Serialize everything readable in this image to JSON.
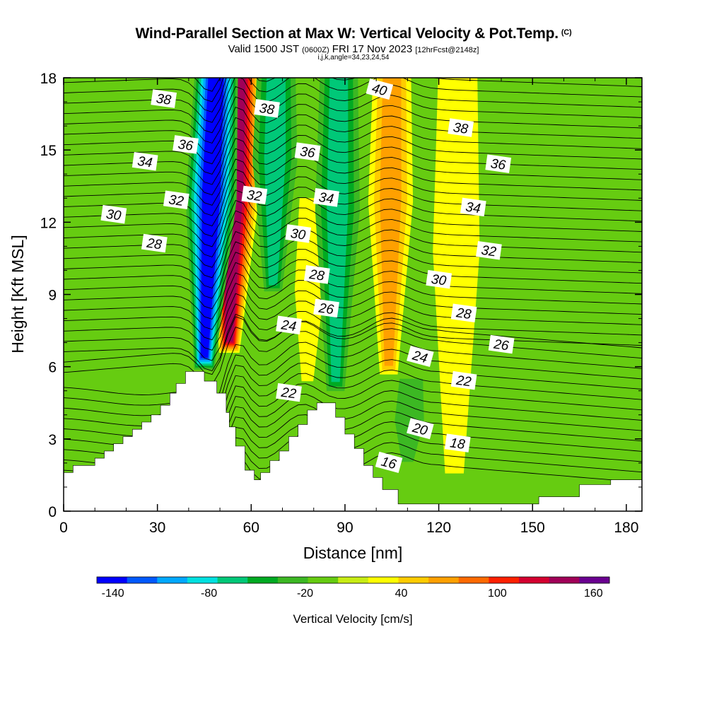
{
  "titles": {
    "main": "Wind-Parallel Section at Max W: Vertical Velocity & Pot.Temp.",
    "copyright": "(C)",
    "valid_prefix": "Valid 1500 JST",
    "valid_utc": "(0600Z)",
    "valid_date": "FRI 17 Nov 2023",
    "forecast": "[12hrFcst@2148z]",
    "indices": "i,j,k,angle=34,23,24,54"
  },
  "chart_data": {
    "type": "heatmap",
    "xlabel": "Distance [nm]",
    "ylabel": "Height [Kft MSL]",
    "xlim": [
      0,
      185
    ],
    "ylim": [
      0,
      18
    ],
    "x_ticks": [
      "0",
      "30",
      "60",
      "90",
      "120",
      "150",
      "180"
    ],
    "y_ticks": [
      "0",
      "3",
      "6",
      "9",
      "12",
      "15",
      "18"
    ],
    "colorbar": {
      "label": "Vertical Velocity [cm/s]",
      "tick_labels": [
        "-140",
        "-80",
        "-20",
        "40",
        "100",
        "160"
      ],
      "tick_values": [
        -140,
        -80,
        -20,
        40,
        100,
        160
      ],
      "range": [
        -150,
        170
      ],
      "colors": [
        "#0000ff",
        "#0059ff",
        "#00a8ff",
        "#00e0e0",
        "#00c878",
        "#00aa22",
        "#3cb823",
        "#66cc11",
        "#c8ec14",
        "#ffff00",
        "#ffcc00",
        "#ffa000",
        "#ff6a00",
        "#ff2000",
        "#d40030",
        "#a00058",
        "#6a0090"
      ]
    },
    "updrafts": [
      {
        "x": 53,
        "y_bottom": 6.5,
        "y_top": 18,
        "peak": 140
      },
      {
        "x": 78,
        "y_bottom": 5.2,
        "y_top": 11,
        "peak": 30
      },
      {
        "x": 104,
        "y_bottom": 5.5,
        "y_top": 18,
        "peak": 60
      },
      {
        "x": 125,
        "y_bottom": 1,
        "y_top": 18,
        "peak": 20
      }
    ],
    "downdrafts": [
      {
        "x": 45,
        "y_bottom": 5.8,
        "y_top": 18,
        "peak": -140
      },
      {
        "x": 67,
        "y_bottom": 9,
        "y_top": 18,
        "peak": -70
      },
      {
        "x": 87,
        "y_bottom": 4.8,
        "y_top": 18,
        "peak": -60
      },
      {
        "x": 110,
        "y_bottom": 2,
        "y_top": 3.5,
        "peak": -25
      }
    ],
    "terrain": [
      [
        0,
        1.6
      ],
      [
        3,
        1.6
      ],
      [
        3,
        1.9
      ],
      [
        10,
        1.9
      ],
      [
        10,
        2.2
      ],
      [
        13,
        2.2
      ],
      [
        13,
        2.5
      ],
      [
        16,
        2.5
      ],
      [
        16,
        2.8
      ],
      [
        19,
        2.8
      ],
      [
        19,
        3.1
      ],
      [
        22,
        3.1
      ],
      [
        22,
        3.4
      ],
      [
        25,
        3.4
      ],
      [
        25,
        3.7
      ],
      [
        28,
        3.7
      ],
      [
        28,
        4.0
      ],
      [
        31,
        4.0
      ],
      [
        31,
        4.4
      ],
      [
        34,
        4.4
      ],
      [
        34,
        4.9
      ],
      [
        36,
        4.9
      ],
      [
        36,
        5.3
      ],
      [
        39,
        5.3
      ],
      [
        39,
        5.8
      ],
      [
        45,
        5.8
      ],
      [
        45,
        5.4
      ],
      [
        49,
        5.4
      ],
      [
        49,
        4.9
      ],
      [
        52,
        4.9
      ],
      [
        52,
        4.1
      ],
      [
        53,
        4.1
      ],
      [
        53,
        3.5
      ],
      [
        55,
        3.5
      ],
      [
        55,
        2.7
      ],
      [
        58,
        2.7
      ],
      [
        58,
        1.7
      ],
      [
        61,
        1.7
      ],
      [
        61,
        1.3
      ],
      [
        63,
        1.3
      ],
      [
        63,
        1.6
      ],
      [
        66,
        1.6
      ],
      [
        66,
        2.1
      ],
      [
        69,
        2.1
      ],
      [
        69,
        2.5
      ],
      [
        72,
        2.5
      ],
      [
        72,
        3.1
      ],
      [
        75,
        3.1
      ],
      [
        75,
        3.6
      ],
      [
        78,
        3.6
      ],
      [
        78,
        4.2
      ],
      [
        81,
        4.2
      ],
      [
        81,
        4.5
      ],
      [
        87,
        4.5
      ],
      [
        87,
        3.9
      ],
      [
        90,
        3.9
      ],
      [
        90,
        3.2
      ],
      [
        93,
        3.2
      ],
      [
        93,
        2.6
      ],
      [
        96,
        2.6
      ],
      [
        96,
        1.9
      ],
      [
        99,
        1.9
      ],
      [
        99,
        1.4
      ],
      [
        102,
        1.4
      ],
      [
        102,
        0.9
      ],
      [
        107,
        0.9
      ],
      [
        107,
        0.3
      ],
      [
        152,
        0.3
      ],
      [
        152,
        0.6
      ],
      [
        165,
        0.6
      ],
      [
        165,
        1.1
      ],
      [
        175,
        1.1
      ],
      [
        175,
        1.3
      ],
      [
        185,
        1.3
      ]
    ],
    "theta_contours": [
      {
        "label": "16",
        "x": 104,
        "y": 2.0
      },
      {
        "label": "18",
        "x": 126,
        "y": 2.8
      },
      {
        "label": "20",
        "x": 114,
        "y": 3.4
      },
      {
        "label": "22",
        "x": 72,
        "y": 4.9
      },
      {
        "label": "22",
        "x": 128,
        "y": 5.4
      },
      {
        "label": "24",
        "x": 72,
        "y": 7.7
      },
      {
        "label": "24",
        "x": 114,
        "y": 6.4
      },
      {
        "label": "26",
        "x": 84,
        "y": 8.4
      },
      {
        "label": "26",
        "x": 140,
        "y": 6.9
      },
      {
        "label": "28",
        "x": 29,
        "y": 11.1
      },
      {
        "label": "28",
        "x": 81,
        "y": 9.8
      },
      {
        "label": "28",
        "x": 128,
        "y": 8.2
      },
      {
        "label": "30",
        "x": 16,
        "y": 12.3
      },
      {
        "label": "30",
        "x": 75,
        "y": 11.5
      },
      {
        "label": "30",
        "x": 120,
        "y": 9.6
      },
      {
        "label": "32",
        "x": 36,
        "y": 12.9
      },
      {
        "label": "32",
        "x": 61,
        "y": 13.1
      },
      {
        "label": "32",
        "x": 136,
        "y": 10.8
      },
      {
        "label": "34",
        "x": 26,
        "y": 14.5
      },
      {
        "label": "34",
        "x": 84,
        "y": 13.0
      },
      {
        "label": "34",
        "x": 131,
        "y": 12.6
      },
      {
        "label": "36",
        "x": 39,
        "y": 15.2
      },
      {
        "label": "36",
        "x": 78,
        "y": 14.9
      },
      {
        "label": "36",
        "x": 139,
        "y": 14.4
      },
      {
        "label": "38",
        "x": 32,
        "y": 17.1
      },
      {
        "label": "38",
        "x": 65,
        "y": 16.7
      },
      {
        "label": "38",
        "x": 127,
        "y": 15.9
      },
      {
        "label": "40",
        "x": 101,
        "y": 17.5
      }
    ]
  }
}
